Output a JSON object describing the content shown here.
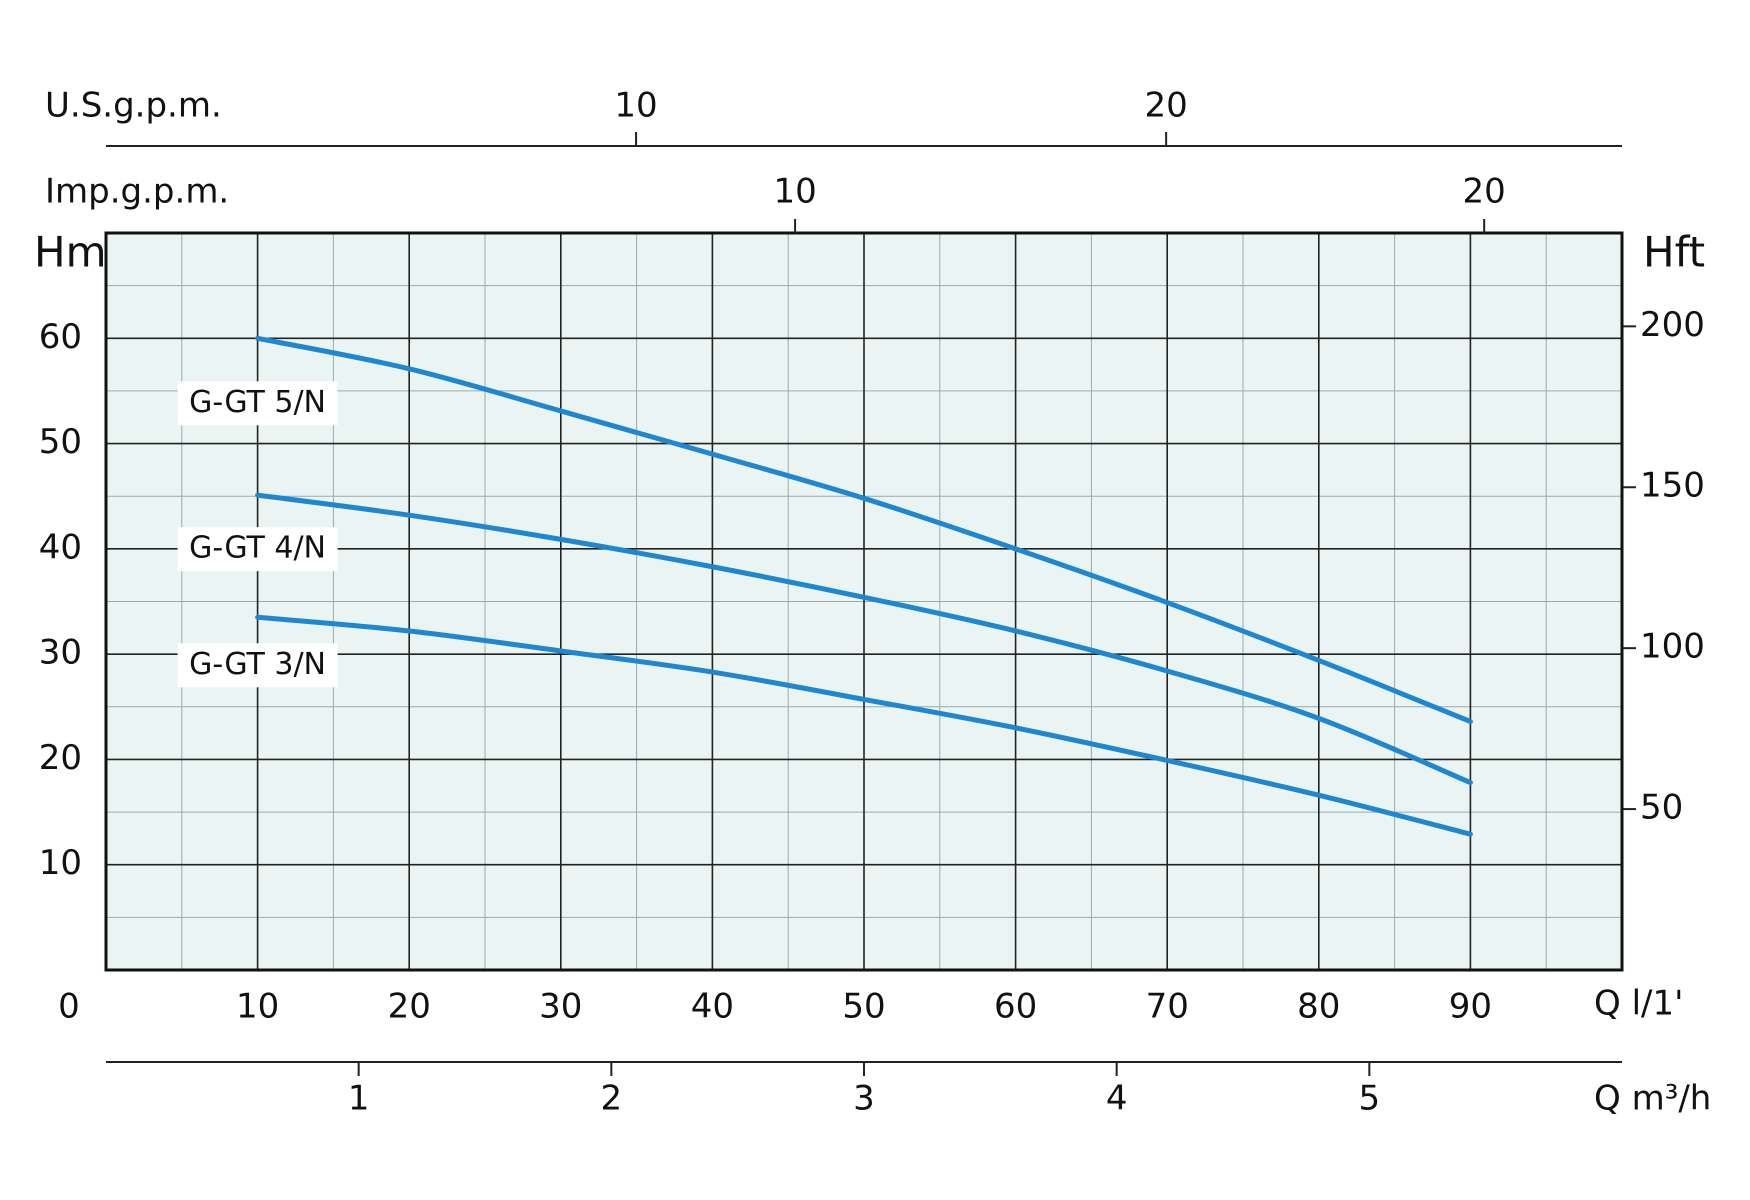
{
  "chart_data": {
    "type": "line",
    "x": [
      10,
      20,
      30,
      40,
      50,
      60,
      70,
      80,
      90
    ],
    "xlim": [
      0,
      100
    ],
    "xticks": [
      0,
      10,
      20,
      30,
      40,
      50,
      60,
      70,
      80,
      90
    ],
    "xlabel": "Q l/1'",
    "ylim": [
      0,
      70
    ],
    "yticks": [
      10,
      20,
      30,
      40,
      50,
      60
    ],
    "ylabel": "Hm",
    "y2lim": [
      0,
      229
    ],
    "y2ticks": [
      50,
      100,
      150,
      200
    ],
    "y2label": "Hft",
    "grid": true,
    "background": "#eaf5f3",
    "series": [
      {
        "name": "G-GT 5/N",
        "color": "#1f87d0",
        "values": [
          60,
          57.1,
          53.1,
          49.0,
          44.8,
          40.0,
          34.9,
          29.4,
          23.6
        ]
      },
      {
        "name": "G-GT 4/N",
        "color": "#1f87d0",
        "values": [
          45.1,
          43.2,
          40.9,
          38.3,
          35.4,
          32.2,
          28.4,
          23.9,
          17.8
        ]
      },
      {
        "name": "G-GT 3/N",
        "color": "#1f87d0",
        "values": [
          33.5,
          32.2,
          30.3,
          28.3,
          25.7,
          23.0,
          19.9,
          16.6,
          12.9
        ]
      }
    ],
    "x_axes_extra": [
      {
        "label": "U.S.g.p.m.",
        "position": "top-outer",
        "xlim": [
          0,
          28.6
        ],
        "xticks": [
          10,
          20
        ]
      },
      {
        "label": "Imp.g.p.m.",
        "position": "top",
        "xlim": [
          0,
          22
        ],
        "xticks": [
          10,
          20
        ]
      },
      {
        "label": "Q m³/h",
        "position": "bottom",
        "xlim": [
          0,
          6
        ],
        "xticks": [
          1,
          2,
          3,
          4,
          5
        ]
      }
    ]
  }
}
